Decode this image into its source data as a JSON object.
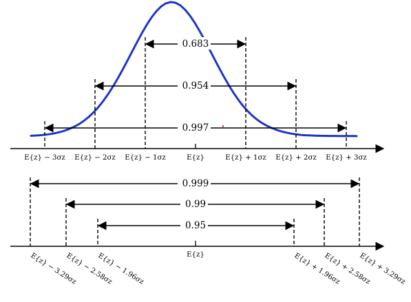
{
  "figure": {
    "top_axis_labels": [
      "E{z} − 3σz",
      "E{z} − 2σz",
      "E{z} − 1σz",
      "E{z}",
      "E{z} + 1σz",
      "E{z} + 2σz",
      "E{z} + 3σz"
    ],
    "top_intervals": [
      "0.683",
      "0.954",
      "0.997"
    ],
    "bottom_axis_labels": [
      "E{z} − 3.29σz",
      "E{z} − 2.58σz",
      "E{z} − 1.96σz",
      "E{z}",
      "E{z} + 1.96σz",
      "E{z} + 2.58σz",
      "E{z} + 3.29σz"
    ],
    "bottom_intervals": [
      "0.999",
      "0.99",
      "0.95"
    ],
    "colors": {
      "curve": "#1f35c8",
      "axis": "#000000",
      "dot": "#cc0000"
    }
  }
}
